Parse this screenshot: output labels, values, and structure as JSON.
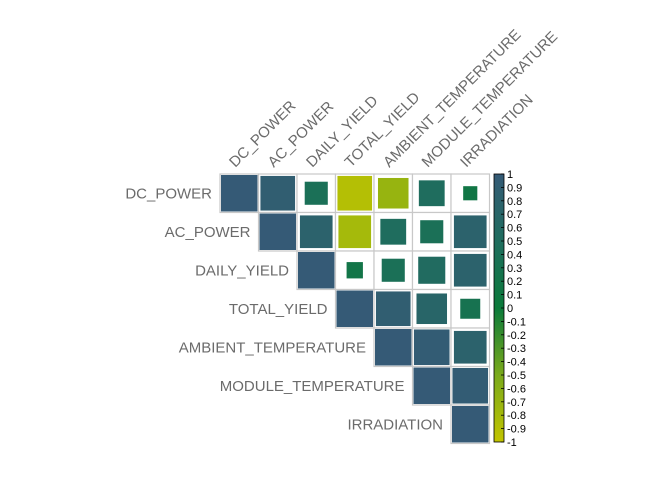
{
  "chart_data": {
    "type": "heatmap",
    "variables": [
      "DC_POWER",
      "AC_POWER",
      "DAILY_YIELD",
      "TOTAL_YIELD",
      "AMBIENT_TEMPERATURE",
      "MODULE_TEMPERATURE",
      "IRRADIATION"
    ],
    "matrix": [
      [
        1.0,
        0.9,
        0.4,
        -0.9,
        -0.7,
        0.5,
        0.15
      ],
      [
        0.9,
        1.0,
        0.8,
        -0.8,
        0.5,
        0.4,
        0.8
      ],
      [
        0.4,
        0.8,
        1.0,
        0.2,
        0.4,
        0.55,
        0.8
      ],
      [
        -0.9,
        -0.8,
        0.2,
        1.0,
        0.9,
        0.7,
        0.3
      ],
      [
        -0.7,
        0.5,
        0.4,
        0.9,
        1.0,
        0.95,
        0.8
      ],
      [
        0.5,
        0.4,
        0.55,
        0.7,
        0.95,
        1.0,
        0.95
      ],
      [
        0.15,
        0.8,
        0.8,
        0.3,
        0.8,
        0.95,
        1.0
      ]
    ],
    "shape": "upper-triangle",
    "colorbar": {
      "ticks": [
        "1",
        "0.9",
        "0.8",
        "0.7",
        "0.6",
        "0.5",
        "0.4",
        "0.3",
        "0.2",
        "0.1",
        "0",
        "-0.1",
        "-0.2",
        "-0.3",
        "-0.4",
        "-0.5",
        "-0.6",
        "-0.7",
        "-0.8",
        "-0.9",
        "-1"
      ],
      "range": [
        -1,
        1
      ],
      "placement": "right"
    },
    "colors": {
      "negative": "#c2c400",
      "negative_mid": "#7aaa1b",
      "zero": "#0b7a3a",
      "positive_mid": "#1f6d5e",
      "positive": "#355a76",
      "grid": "#c8c8c8"
    }
  }
}
